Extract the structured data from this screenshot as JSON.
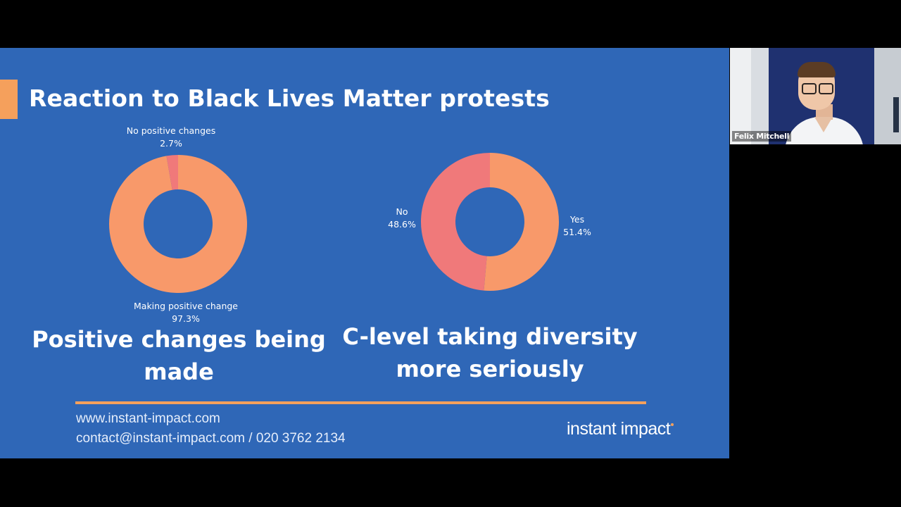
{
  "slide": {
    "title": "Reaction to Black Lives Matter protests",
    "footer": {
      "website": "www.instant-impact.com",
      "contact": "contact@instant-impact.com / 020 3762 2134"
    },
    "logo_text": "instant impact"
  },
  "participant": {
    "name": "Felix Mitchell"
  },
  "colors": {
    "slide_background": "#2f67b7",
    "accent_orange": "#f5a05c",
    "donut_orange": "#f8996a",
    "donut_pink": "#f0797a"
  },
  "chart_data": [
    {
      "type": "pie",
      "variant": "donut",
      "caption": "Positive changes being made",
      "slices": [
        {
          "label": "Making positive change",
          "value": 97.3,
          "value_text": "97.3%",
          "color": "#f8996a"
        },
        {
          "label": "No positive changes",
          "value": 2.7,
          "value_text": "2.7%",
          "color": "#f0797a"
        }
      ]
    },
    {
      "type": "pie",
      "variant": "donut",
      "caption": "C-level taking diversity more seriously",
      "slices": [
        {
          "label": "Yes",
          "value": 51.4,
          "value_text": "51.4%",
          "color": "#f8996a"
        },
        {
          "label": "No",
          "value": 48.6,
          "value_text": "48.6%",
          "color": "#f0797a"
        }
      ]
    }
  ]
}
